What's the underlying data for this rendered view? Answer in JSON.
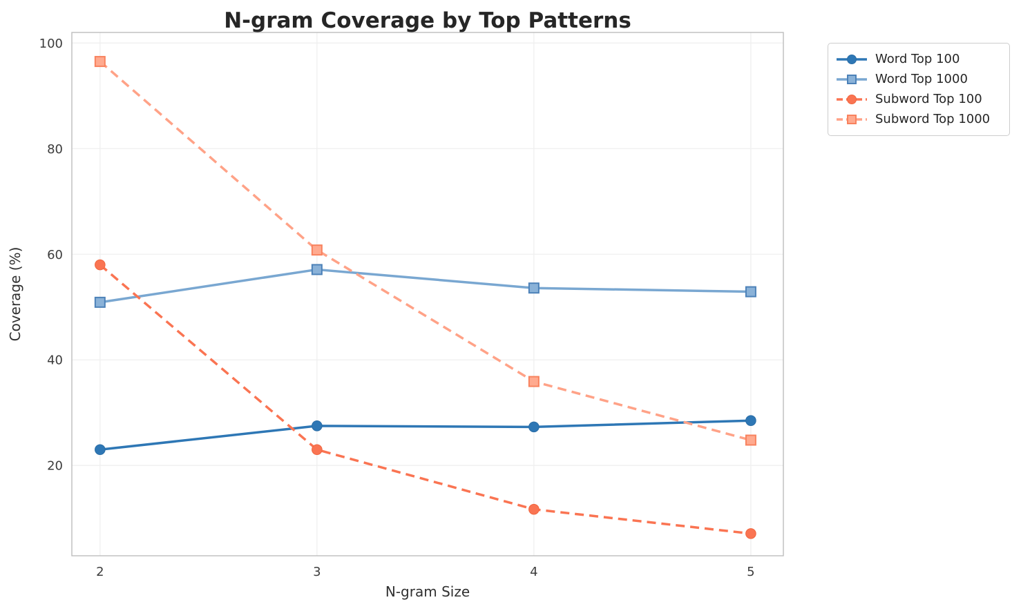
{
  "figure": {
    "background_color": "#ffffff"
  },
  "chart_data": {
    "type": "line",
    "title": "N-gram Coverage by Top Patterns",
    "xlabel": "N-gram Size",
    "ylabel": "Coverage (%)",
    "x": [
      2,
      3,
      4,
      5
    ],
    "x_ticks": [
      2,
      3,
      4,
      5
    ],
    "y_ticks": [
      20,
      40,
      60,
      80,
      100
    ],
    "xlim": [
      1.87,
      5.15
    ],
    "ylim": [
      2.9,
      102
    ],
    "grid": true,
    "legend_position": "outside-upper-right",
    "series": [
      {
        "name": "Word Top 100",
        "values": [
          23.0,
          27.5,
          27.3,
          28.5
        ],
        "color": "#2E77B5",
        "marker_fill": "#2E77B5",
        "marker_edge": "#2A6DA6",
        "marker": "circle",
        "line_style": "solid"
      },
      {
        "name": "Word Top 1000",
        "values": [
          50.9,
          57.1,
          53.6,
          52.9
        ],
        "color": "#79A7D1",
        "marker_fill": "#8AB2D8",
        "marker_edge": "#4C81B8",
        "marker": "square",
        "line_style": "solid"
      },
      {
        "name": "Subword Top 100",
        "values": [
          58.0,
          23.0,
          11.7,
          7.1
        ],
        "color": "#FA7452",
        "marker_fill": "#FA7452",
        "marker_edge": "#F0663F",
        "marker": "circle",
        "line_style": "dashed"
      },
      {
        "name": "Subword Top 1000",
        "values": [
          96.5,
          60.8,
          35.9,
          24.8
        ],
        "color": "#FFA287",
        "marker_fill": "#FFAA8F",
        "marker_edge": "#F8825E",
        "marker": "square",
        "line_style": "dashed"
      }
    ],
    "style": {
      "grid_color": "#efefef",
      "spine_color": "#bdbdbd",
      "title_color": "#262626",
      "tick_color": "#3c3c3c"
    }
  }
}
